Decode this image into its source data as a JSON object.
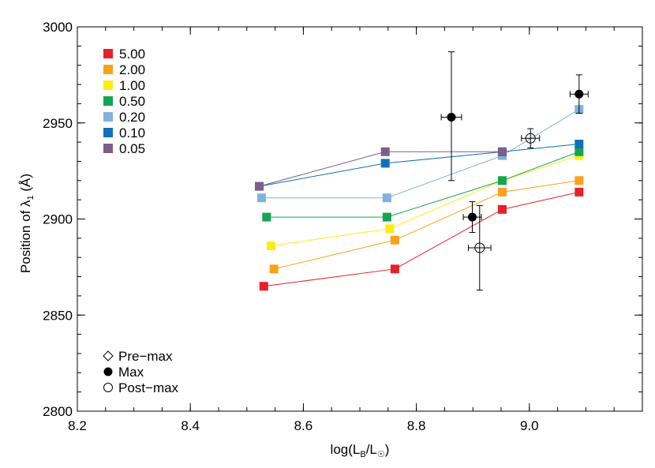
{
  "chart_data": {
    "type": "line",
    "xlabel": {
      "prefix": "log(L",
      "sub1": "B",
      "mid": "/L",
      "sub2": "☉",
      "suffix": ")"
    },
    "ylabel": {
      "prefix": "Position of λ",
      "sub": "1",
      "suffix": " (Å)"
    },
    "xlim": [
      8.2,
      9.2
    ],
    "ylim": [
      2800,
      3000
    ],
    "x_ticks": [
      8.2,
      8.4,
      8.6,
      8.8,
      9.0
    ],
    "x_tick_labels": [
      "8.2",
      "8.4",
      "8.6",
      "8.8",
      "9.0"
    ],
    "y_ticks": [
      2800,
      2850,
      2900,
      2950,
      3000
    ],
    "y_tick_labels": [
      "2800",
      "2850",
      "2900",
      "2950",
      "3000"
    ],
    "grid": false,
    "legend_placement": "top-left",
    "series": [
      {
        "name": "5.00",
        "color": "#e8202a",
        "x": [
          8.53,
          8.762,
          8.952,
          9.088
        ],
        "y": [
          2865,
          2874,
          2905,
          2914
        ]
      },
      {
        "name": "2.00",
        "color": "#f7a21b",
        "x": [
          8.548,
          8.762,
          8.952,
          9.088
        ],
        "y": [
          2874,
          2889,
          2914,
          2920
        ]
      },
      {
        "name": "1.00",
        "color": "#fcec14",
        "x": [
          8.543,
          8.753,
          8.952,
          9.088
        ],
        "y": [
          2886,
          2895,
          2920,
          2933
        ]
      },
      {
        "name": "0.50",
        "color": "#13a651",
        "x": [
          8.535,
          8.748,
          8.952,
          9.088
        ],
        "y": [
          2901,
          2901,
          2920,
          2935
        ]
      },
      {
        "name": "0.20",
        "color": "#7fb2dc",
        "x": [
          8.526,
          8.748,
          8.952,
          9.088
        ],
        "y": [
          2911,
          2911,
          2933,
          2957
        ]
      },
      {
        "name": "0.10",
        "color": "#1170b8",
        "x": [
          8.522,
          8.745,
          8.952,
          9.088
        ],
        "y": [
          2917,
          2929,
          2935,
          2939
        ]
      },
      {
        "name": "0.05",
        "color": "#7a5f8c",
        "x": [
          8.522,
          8.745,
          8.952
        ],
        "y": [
          2917,
          2935,
          2935
        ]
      }
    ],
    "observations": [
      {
        "epoch": "Max",
        "x": 8.862,
        "y": 2953,
        "xerr": 0.018,
        "yerr_low": 33,
        "yerr_high": 34
      },
      {
        "epoch": "Max",
        "x": 8.899,
        "y": 2901,
        "xerr": 0.016,
        "yerr_low": 8,
        "yerr_high": 8
      },
      {
        "epoch": "Max",
        "x": 9.088,
        "y": 2965,
        "xerr": 0.016,
        "yerr_low": 10,
        "yerr_high": 10
      },
      {
        "epoch": "Post-max",
        "x": 8.912,
        "y": 2885,
        "xerr": 0.02,
        "yerr_low": 22,
        "yerr_high": 22
      },
      {
        "epoch": "Post-max",
        "x": 9.002,
        "y": 2942,
        "xerr": 0.016,
        "yerr_low": 5,
        "yerr_high": 5
      }
    ],
    "marker_legend": [
      {
        "symbol": "diamond-open",
        "label": "Pre−max"
      },
      {
        "symbol": "circle-filled",
        "label": "Max"
      },
      {
        "symbol": "circle-open",
        "label": "Post−max"
      }
    ]
  }
}
